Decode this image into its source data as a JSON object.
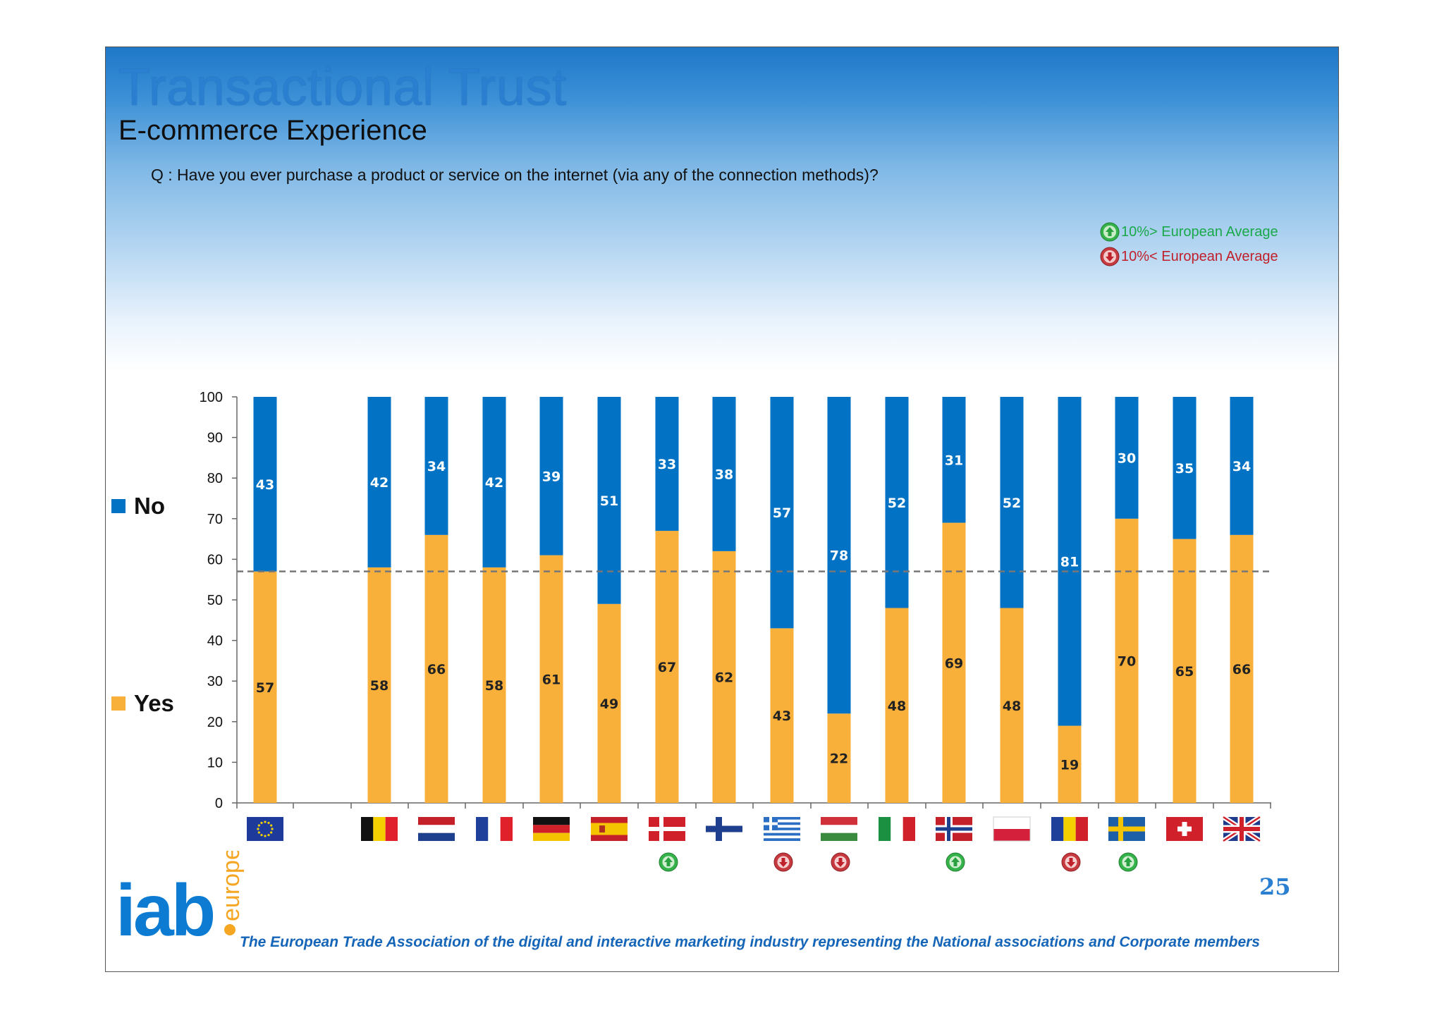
{
  "header": {
    "title": "Transactional Trust",
    "subtitle": "E-commerce Experience",
    "question": "Q : Have you ever purchase a product or service on the internet (via any of the connection methods)?"
  },
  "indicator_legend": {
    "above": "10%> European Average",
    "below": "10%< European Average",
    "above_color": "#1aa84a",
    "below_color": "#c0202a"
  },
  "footer": {
    "page_number": "25",
    "tagline": "The European Trade Association of the digital and interactive marketing industry representing the National associations and Corporate members",
    "logo_main": "iab",
    "logo_sub": "europe"
  },
  "chart_data": {
    "type": "bar",
    "stacked": true,
    "categories": [
      "Europe",
      "Belgium",
      "Netherlands",
      "France",
      "Germany",
      "Spain",
      "Denmark",
      "Finland",
      "Greece",
      "Hungary",
      "Italy",
      "Norway",
      "Poland",
      "Romania",
      "Sweden",
      "Switzerland",
      "United Kingdom"
    ],
    "category_icons": [
      "flag-eu-icon",
      "flag-belgium-icon",
      "flag-netherlands-icon",
      "flag-france-icon",
      "flag-germany-icon",
      "flag-spain-icon",
      "flag-denmark-icon",
      "flag-finland-icon",
      "flag-greece-icon",
      "flag-hungary-icon",
      "flag-italy-icon",
      "flag-norway-icon",
      "flag-poland-icon",
      "flag-romania-icon",
      "flag-sweden-icon",
      "flag-switzerland-icon",
      "flag-uk-icon"
    ],
    "series": [
      {
        "name": "Yes",
        "color": "#f8b03a",
        "values": [
          57,
          58,
          66,
          58,
          61,
          49,
          67,
          62,
          43,
          22,
          48,
          69,
          48,
          19,
          70,
          65,
          66
        ]
      },
      {
        "name": "No",
        "color": "#0272c4",
        "values": [
          43,
          42,
          34,
          42,
          39,
          51,
          33,
          38,
          57,
          78,
          52,
          31,
          52,
          81,
          30,
          35,
          34
        ]
      }
    ],
    "indicators": [
      "",
      "",
      "",
      "",
      "",
      "",
      "up",
      "",
      "down",
      "down",
      "",
      "up",
      "",
      "down",
      "up",
      "",
      ""
    ],
    "reference_line": {
      "value": 57,
      "style": "dashed"
    },
    "ylim": [
      0,
      100
    ],
    "yticks": [
      0,
      10,
      20,
      30,
      40,
      50,
      60,
      70,
      80,
      90,
      100
    ],
    "legend": "left"
  }
}
